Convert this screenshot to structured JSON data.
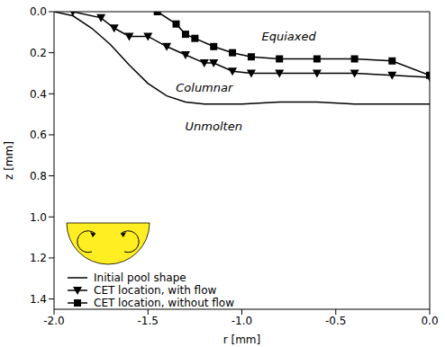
{
  "chart_data": {
    "type": "line",
    "x_label": "r [mm]",
    "y_label": "z [mm]",
    "xlim": [
      -2,
      0
    ],
    "xticks": [
      {
        "value": -2,
        "label": "-2.0"
      },
      {
        "value": -1.5,
        "label": "-1.5"
      },
      {
        "value": -1,
        "label": "-1.0"
      },
      {
        "value": -0.5,
        "label": "-0.5"
      },
      {
        "value": 0,
        "label": "0.0"
      }
    ],
    "ylim": [
      0,
      1.45
    ],
    "yticks": [
      {
        "value": 0,
        "label": "0.0"
      },
      0.2,
      0.4,
      0.6,
      0.8,
      {
        "value": 1,
        "label": "1.0"
      },
      1.2,
      1.4
    ],
    "y_inverted": true,
    "grid": false,
    "legend": "lower left",
    "series": [
      {
        "name": "Initial pool shape",
        "color": "#000000",
        "marker": "none",
        "line_style": "solid",
        "x": [
          -2.0,
          -1.9,
          -1.8,
          -1.7,
          -1.6,
          -1.5,
          -1.4,
          -1.3,
          -1.2,
          -1.1,
          -1.0,
          -0.8,
          -0.6,
          -0.4,
          -0.2,
          0.0
        ],
        "values": [
          0.0,
          0.02,
          0.08,
          0.16,
          0.26,
          0.35,
          0.41,
          0.44,
          0.45,
          0.45,
          0.45,
          0.44,
          0.44,
          0.45,
          0.45,
          0.45
        ]
      },
      {
        "name": "CET location, with flow",
        "color": "#000000",
        "marker": "triangle_down",
        "line_style": "solid",
        "x": [
          -1.9,
          -1.75,
          -1.68,
          -1.6,
          -1.5,
          -1.4,
          -1.3,
          -1.2,
          -1.15,
          -1.05,
          -0.95,
          -0.8,
          -0.6,
          -0.4,
          -0.2,
          0.0
        ],
        "values": [
          0.0,
          0.03,
          0.08,
          0.12,
          0.12,
          0.17,
          0.21,
          0.25,
          0.25,
          0.29,
          0.3,
          0.3,
          0.3,
          0.3,
          0.31,
          0.32
        ]
      },
      {
        "name": "CET location, without flow",
        "color": "#000000",
        "marker": "square",
        "line_style": "solid",
        "x": [
          -1.45,
          -1.35,
          -1.3,
          -1.25,
          -1.15,
          -1.05,
          -0.95,
          -0.8,
          -0.6,
          -0.4,
          -0.2,
          0.0
        ],
        "values": [
          0.0,
          0.06,
          0.11,
          0.13,
          0.17,
          0.2,
          0.22,
          0.23,
          0.23,
          0.23,
          0.24,
          0.31
        ]
      }
    ],
    "annotations": [
      {
        "text": "Equiaxed",
        "x": -0.75,
        "y": 0.12
      },
      {
        "text": "Columnar",
        "x": -1.2,
        "y": 0.37
      },
      {
        "text": "Unmolten",
        "x": -1.15,
        "y": 0.56
      }
    ]
  }
}
